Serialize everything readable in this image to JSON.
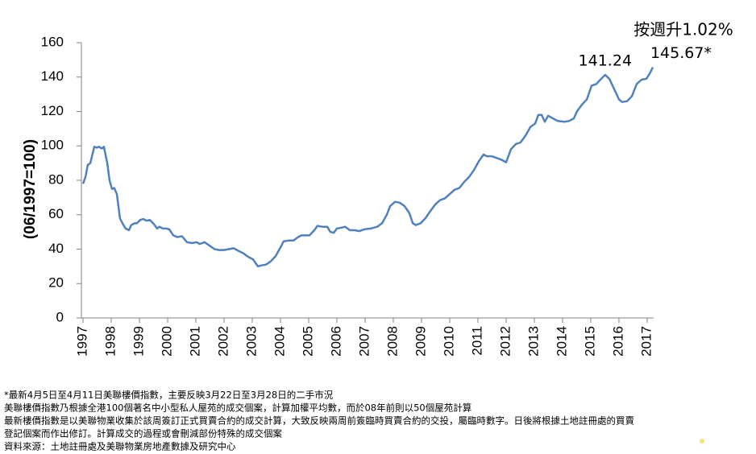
{
  "chart_data": {
    "type": "line",
    "title": "按週升1.02%",
    "y_label": "(06/1997=100)",
    "color": "#4f81bd",
    "x": [
      1997.0,
      1997.09,
      1997.17,
      1997.26,
      1997.4,
      1997.49,
      1997.57,
      1997.66,
      1997.74,
      1997.86,
      1997.94,
      1998.03,
      1998.11,
      1998.2,
      1998.31,
      1998.4,
      1998.51,
      1998.63,
      1998.71,
      1998.83,
      1998.91,
      1999.03,
      1999.14,
      1999.26,
      1999.37,
      1999.49,
      1999.63,
      1999.71,
      1999.83,
      1999.94,
      2000.06,
      2000.2,
      2000.34,
      2000.51,
      2000.69,
      2000.86,
      2001.03,
      2001.14,
      2001.31,
      2001.49,
      2001.66,
      2001.83,
      2002.0,
      2002.17,
      2002.34,
      2002.51,
      2002.69,
      2002.86,
      2003.03,
      2003.2,
      2003.31,
      2003.49,
      2003.66,
      2003.83,
      2004.0,
      2004.11,
      2004.29,
      2004.46,
      2004.63,
      2004.74,
      2004.86,
      2005.03,
      2005.2,
      2005.31,
      2005.49,
      2005.66,
      2005.77,
      2005.89,
      2006.0,
      2006.17,
      2006.29,
      2006.46,
      2006.63,
      2006.8,
      2006.97,
      2007.2,
      2007.43,
      2007.6,
      2007.77,
      2007.89,
      2008.06,
      2008.23,
      2008.4,
      2008.57,
      2008.69,
      2008.8,
      2008.97,
      2009.14,
      2009.31,
      2009.49,
      2009.66,
      2009.83,
      2010.0,
      2010.17,
      2010.34,
      2010.51,
      2010.69,
      2010.86,
      2011.03,
      2011.2,
      2011.31,
      2011.49,
      2011.66,
      2011.83,
      2012.0,
      2012.17,
      2012.34,
      2012.51,
      2012.69,
      2012.86,
      2013.03,
      2013.14,
      2013.26,
      2013.37,
      2013.49,
      2013.66,
      2013.83,
      2014.06,
      2014.23,
      2014.4,
      2014.51,
      2014.69,
      2014.86,
      2015.03,
      2015.2,
      2015.37,
      2015.51,
      2015.66,
      2015.83,
      2016.0,
      2016.11,
      2016.29,
      2016.46,
      2016.63,
      2016.8,
      2016.97,
      2017.09,
      2017.2
    ],
    "values": [
      78,
      82,
      89,
      90,
      99.5,
      99,
      99.5,
      98.5,
      99.5,
      90,
      80,
      75,
      75.5,
      72,
      58,
      55,
      52,
      51,
      54,
      55,
      55,
      57,
      57.5,
      56.5,
      57,
      55,
      52,
      53,
      52,
      52,
      51.5,
      48,
      47,
      47.5,
      44,
      43.5,
      44,
      43,
      44,
      42,
      40,
      39.5,
      39.5,
      40,
      40.5,
      39,
      37.5,
      35.5,
      34,
      30,
      30.5,
      31,
      33,
      36,
      41,
      44.5,
      45,
      45,
      47,
      48,
      48,
      48,
      51,
      53.5,
      53,
      53,
      50,
      49.5,
      52,
      52.5,
      53,
      51,
      51,
      50.5,
      51.5,
      52,
      53,
      55,
      60,
      65,
      67.5,
      67,
      65,
      61,
      55,
      54,
      55,
      58,
      62,
      66,
      68.5,
      69.5,
      72,
      74.5,
      75.5,
      79,
      82,
      86,
      91,
      95,
      94,
      94,
      93,
      92,
      90.5,
      98,
      101,
      102,
      106,
      111,
      113,
      118,
      118,
      114,
      117.5,
      116,
      114.5,
      114,
      114.5,
      116,
      120,
      124,
      127,
      135,
      136,
      139,
      141.24,
      139,
      133,
      127,
      125.5,
      126,
      129,
      136,
      138.5,
      139,
      142,
      145.67
    ],
    "value_labels": [
      null,
      null,
      null,
      null,
      null,
      null,
      null,
      null,
      null,
      null,
      null,
      null,
      null,
      null,
      null,
      null,
      null,
      null,
      null,
      null,
      null,
      null,
      null,
      null,
      null,
      null,
      null,
      null,
      null,
      null,
      null,
      null,
      null,
      null,
      null,
      null,
      null,
      null,
      null,
      null,
      null,
      null,
      null,
      null,
      null,
      null,
      null,
      null,
      null,
      null,
      null,
      null,
      null,
      null,
      null,
      null,
      null,
      null,
      null,
      null,
      null,
      null,
      null,
      null,
      null,
      null,
      null,
      null,
      null,
      null,
      null,
      null,
      null,
      null,
      null,
      null,
      null,
      null,
      null,
      null,
      null,
      null,
      null,
      null,
      null,
      null,
      null,
      null,
      null,
      null,
      null,
      null,
      null,
      null,
      null,
      null,
      null,
      null,
      null,
      null,
      null,
      null,
      null,
      null,
      null,
      null,
      null,
      null,
      null,
      null,
      null,
      null,
      null,
      null,
      null,
      null,
      null,
      null,
      null,
      null,
      null,
      null,
      null,
      null,
      null,
      null,
      "141.24",
      null,
      null,
      null,
      null,
      null,
      null,
      null,
      null,
      null,
      null,
      "145.67*"
    ],
    "xlim": [
      1997,
      2017.23
    ],
    "xticks": [
      1997,
      1998,
      1999,
      2000,
      2001,
      2002,
      2003,
      2004,
      2005,
      2006,
      2007,
      2008,
      2009,
      2010,
      2011,
      2012,
      2013,
      2014,
      2015,
      2016,
      2017
    ],
    "ylim": [
      0,
      160
    ],
    "yticks": [
      0,
      20,
      40,
      60,
      80,
      100,
      120,
      140,
      160
    ],
    "notes": [
      "*最新4月5日至4月11日美聯樓價指數，主要反映3月22日至3月28日的二手市況",
      "美聯樓價指數乃根據全港100個著名中小型私人屋苑的成交個案，計算加權平均數，而於08年前則以50個屋苑計算",
      "最新樓價指數是以美聯物業收集於該周簽訂正式買賣合約的成交計算，大致反映兩周前簽臨時買賣合約的交投，屬臨時數字。日後將根據土地註冊處的買賣",
      "登記個案而作出修訂。計算成交的過程或會刪減部份特殊的成交個案",
      "資料來源：土地註冊處及美聯物業房地產數據及研究中心"
    ]
  }
}
